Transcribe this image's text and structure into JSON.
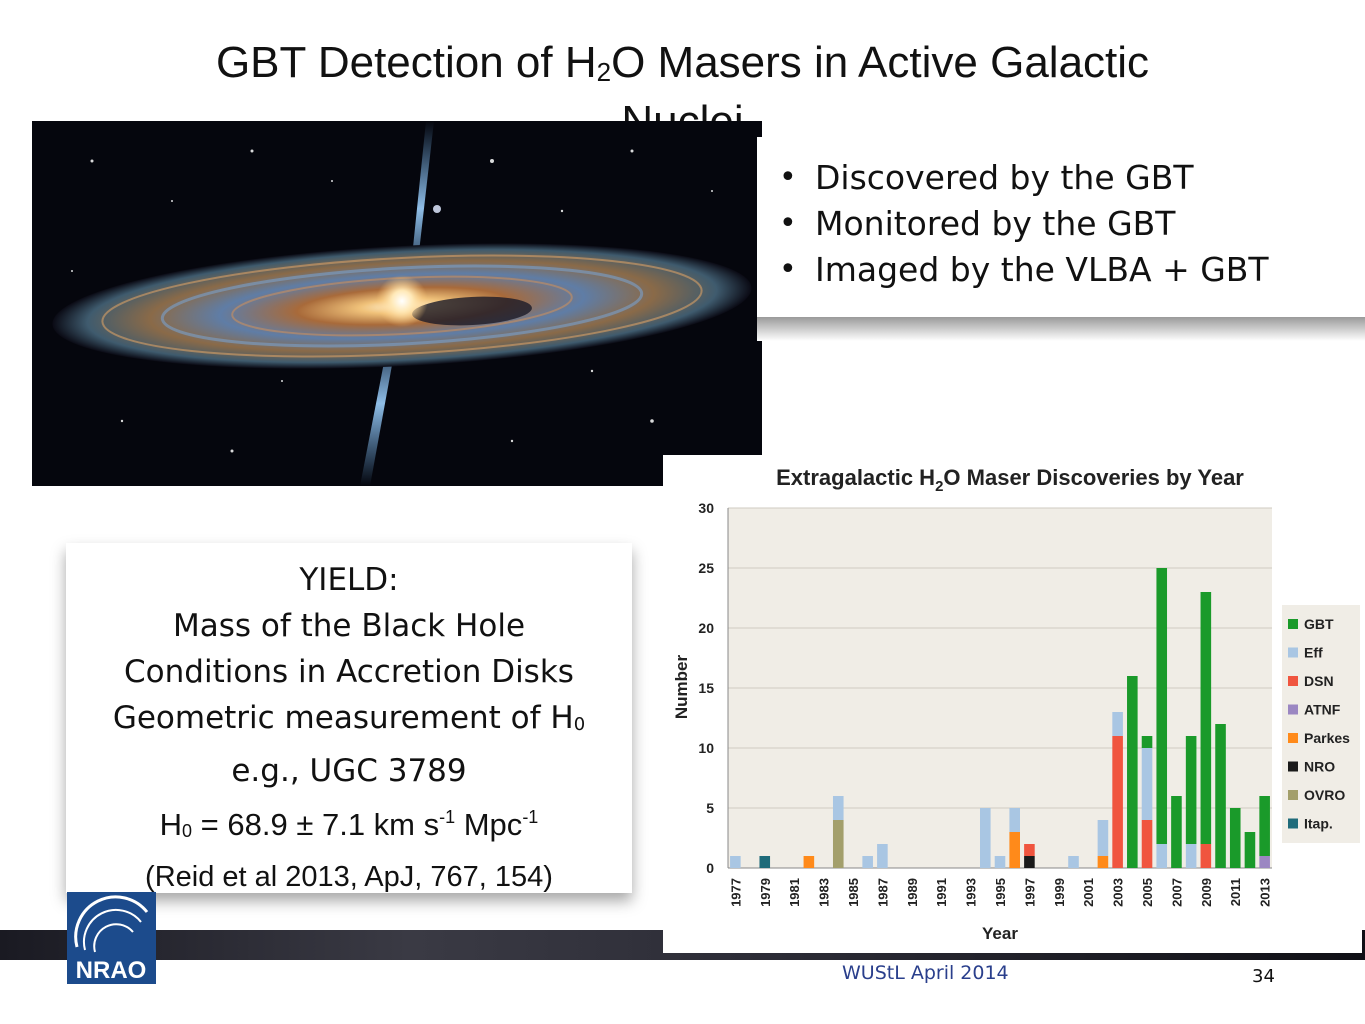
{
  "slide": {
    "title_part1": "GBT Detection of H",
    "title_sub": "2",
    "title_part2": "O Masers in Active Galactic",
    "title_line2": "Nuclei",
    "bullets": [
      "Discovered by the GBT",
      "Monitored by the GBT",
      "Imaged by the VLBA + GBT"
    ],
    "yield": {
      "heading": "YIELD:",
      "line1": "Mass of the Black Hole",
      "line2": "Conditions in Accretion Disks",
      "line3_main": "Geometric measurement of H",
      "line3_sub": "0",
      "line4": "e.g., UGC 3789",
      "h0_a": "H",
      "h0_sub": "0",
      "h0_b": " = 68.9 ± 7.1 km s",
      "h0_sup1": "-1",
      "h0_c": " Mpc",
      "h0_sup2": "-1",
      "reference": "(Reid et al 2013, ApJ, 767, 154)"
    },
    "logo_text": "NRAO",
    "footer": "WUStL April 2014",
    "page_number": "34"
  },
  "chart_data": {
    "type": "bar",
    "stacked": true,
    "title_a": "Extragalactic H",
    "title_sub": "2",
    "title_b": "O Maser Discoveries by Year",
    "xlabel": "Year",
    "ylabel": "Number",
    "ylim": [
      0,
      30
    ],
    "yticks": [
      0,
      5,
      10,
      15,
      20,
      25,
      30
    ],
    "x_tick_labels": [
      "1977",
      "1979",
      "1981",
      "1983",
      "1985",
      "1987",
      "1989",
      "1991",
      "1993",
      "1995",
      "1997",
      "1999",
      "2001",
      "2003",
      "2005",
      "2007",
      "2009",
      "2011",
      "2013"
    ],
    "categories": [
      1977,
      1978,
      1979,
      1980,
      1981,
      1982,
      1983,
      1984,
      1985,
      1986,
      1987,
      1988,
      1989,
      1990,
      1991,
      1992,
      1993,
      1994,
      1995,
      1996,
      1997,
      1998,
      1999,
      2000,
      2001,
      2002,
      2003,
      2004,
      2005,
      2006,
      2007,
      2008,
      2009,
      2010,
      2011,
      2012,
      2013
    ],
    "series": [
      {
        "name": "Itap.",
        "color": "#1f6b7a",
        "values": [
          0,
          0,
          1,
          0,
          0,
          0,
          0,
          0,
          0,
          0,
          0,
          0,
          0,
          0,
          0,
          0,
          0,
          0,
          0,
          0,
          0,
          0,
          0,
          0,
          0,
          0,
          0,
          0,
          0,
          0,
          0,
          0,
          0,
          0,
          0,
          0,
          0
        ]
      },
      {
        "name": "OVRO",
        "color": "#a39f6b",
        "values": [
          0,
          0,
          0,
          0,
          0,
          0,
          0,
          4,
          0,
          0,
          0,
          0,
          0,
          0,
          0,
          0,
          0,
          0,
          0,
          0,
          0,
          0,
          0,
          0,
          0,
          0,
          0,
          0,
          0,
          0,
          0,
          0,
          0,
          0,
          0,
          0,
          0
        ]
      },
      {
        "name": "NRO",
        "color": "#1a1a1a",
        "values": [
          0,
          0,
          0,
          0,
          0,
          0,
          0,
          0,
          0,
          0,
          0,
          0,
          0,
          0,
          0,
          0,
          0,
          0,
          0,
          0,
          1,
          0,
          0,
          0,
          0,
          0,
          0,
          0,
          0,
          0,
          0,
          0,
          0,
          0,
          0,
          0,
          0
        ]
      },
      {
        "name": "Parkes",
        "color": "#ff8a1a",
        "values": [
          0,
          0,
          0,
          0,
          0,
          1,
          0,
          0,
          0,
          0,
          0,
          0,
          0,
          0,
          0,
          0,
          0,
          0,
          0,
          3,
          0,
          0,
          0,
          0,
          0,
          1,
          0,
          0,
          0,
          0,
          0,
          0,
          0,
          0,
          0,
          0,
          0
        ]
      },
      {
        "name": "ATNF",
        "color": "#9b87c2",
        "values": [
          0,
          0,
          0,
          0,
          0,
          0,
          0,
          0,
          0,
          0,
          0,
          0,
          0,
          0,
          0,
          0,
          0,
          0,
          0,
          0,
          0,
          0,
          0,
          0,
          0,
          0,
          0,
          0,
          0,
          0,
          0,
          0,
          0,
          0,
          0,
          0,
          1
        ]
      },
      {
        "name": "DSN",
        "color": "#f0553f",
        "values": [
          0,
          0,
          0,
          0,
          0,
          0,
          0,
          0,
          0,
          0,
          0,
          0,
          0,
          0,
          0,
          0,
          0,
          0,
          0,
          0,
          1,
          0,
          0,
          0,
          0,
          0,
          11,
          0,
          4,
          0,
          0,
          0,
          2,
          0,
          0,
          0,
          0
        ]
      },
      {
        "name": "Eff",
        "color": "#a9c6e3",
        "values": [
          1,
          0,
          0,
          0,
          0,
          0,
          0,
          2,
          0,
          1,
          2,
          0,
          0,
          0,
          0,
          0,
          0,
          5,
          1,
          2,
          0,
          0,
          0,
          1,
          0,
          3,
          2,
          0,
          6,
          2,
          0,
          2,
          0,
          0,
          0,
          0,
          0
        ]
      },
      {
        "name": "GBT",
        "color": "#1a9a2a",
        "values": [
          0,
          0,
          0,
          0,
          0,
          0,
          0,
          0,
          0,
          0,
          0,
          0,
          0,
          0,
          0,
          0,
          0,
          0,
          0,
          0,
          0,
          0,
          0,
          0,
          0,
          0,
          0,
          16,
          1,
          23,
          6,
          9,
          21,
          12,
          5,
          3,
          5
        ]
      }
    ],
    "legend": {
      "position": "right",
      "order": [
        "GBT",
        "Eff",
        "DSN",
        "ATNF",
        "Parkes",
        "NRO",
        "OVRO",
        "Itap."
      ]
    },
    "plot_background": "#f0ede6"
  }
}
